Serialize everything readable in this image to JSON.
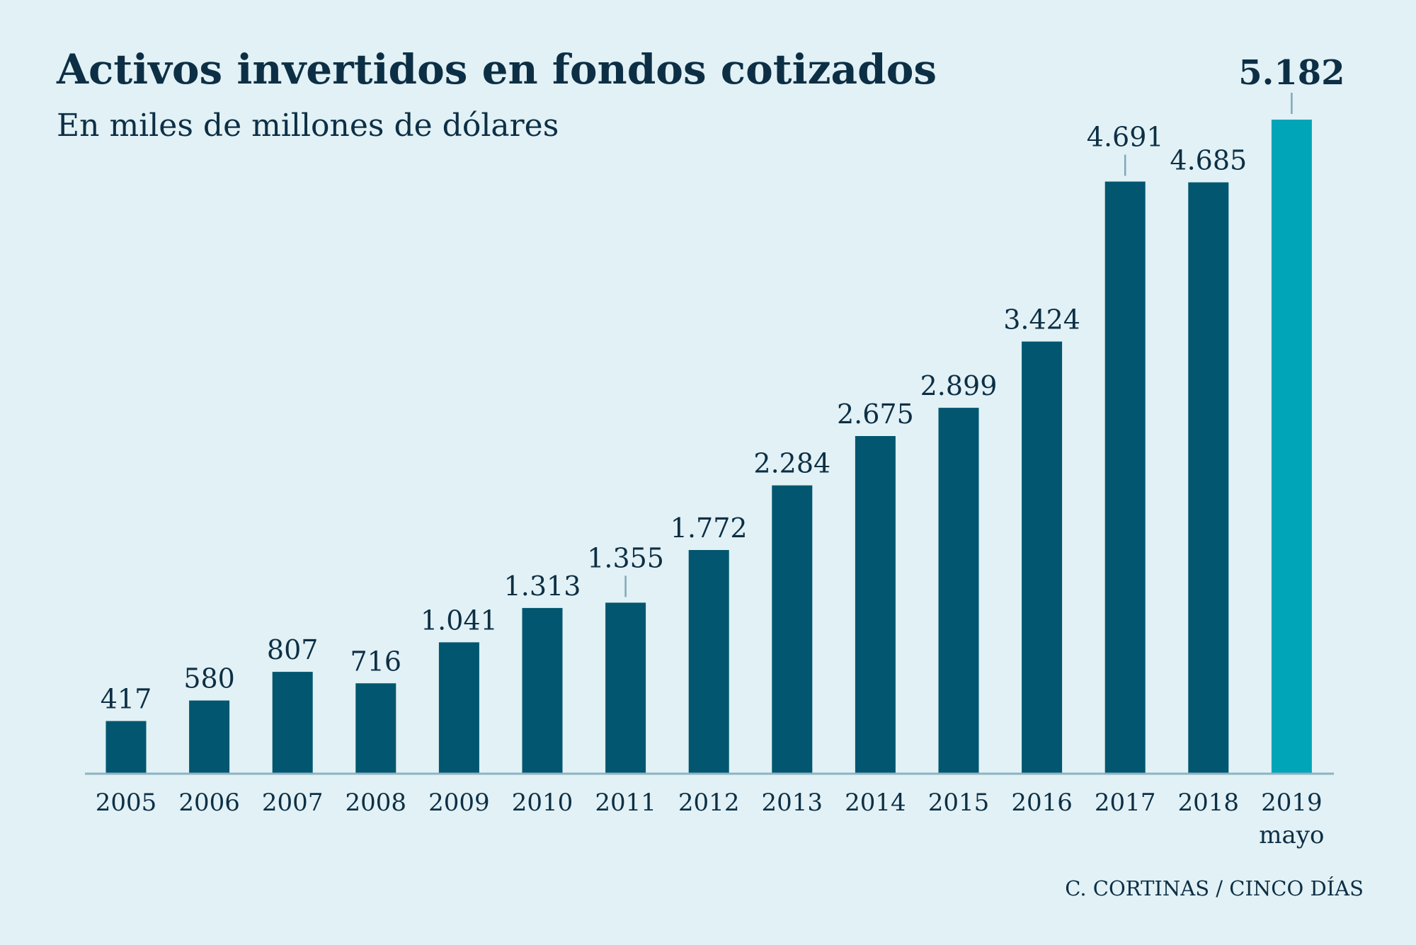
{
  "chart_data": {
    "type": "bar",
    "title": "Activos invertidos en fondos cotizados",
    "subtitle": "En miles de millones de dólares",
    "categories": [
      "2005",
      "2006",
      "2007",
      "2008",
      "2009",
      "2010",
      "2011",
      "2012",
      "2013",
      "2014",
      "2015",
      "2016",
      "2017",
      "2018",
      "2019"
    ],
    "category_sublabels": [
      "",
      "",
      "",
      "",
      "",
      "",
      "",
      "",
      "",
      "",
      "",
      "",
      "",
      "",
      "mayo"
    ],
    "values": [
      417,
      580,
      807,
      716,
      1041,
      1313,
      1355,
      1772,
      2284,
      2675,
      2899,
      3424,
      4691,
      4685,
      5182
    ],
    "value_labels": [
      "417",
      "580",
      "807",
      "716",
      "1.041",
      "1.313",
      "1.355",
      "1.772",
      "2.284",
      "2.675",
      "2.899",
      "3.424",
      "4.691",
      "4.685",
      "5.182"
    ],
    "highlight_index": 14,
    "leader_line_indices": [
      6,
      12,
      14
    ],
    "ylim": [
      0,
      5182
    ],
    "grid": false,
    "legend": "none",
    "xlabel": "",
    "ylabel": "",
    "source": "C. CORTINAS / CINCO DÍAS",
    "colors": {
      "background": "#e1f1f5",
      "bar": "#02566f",
      "highlight_bar": "#00a5b8",
      "text": "#0d2f45",
      "axis": "#8db3c2",
      "leader": "#7fa9b8"
    }
  }
}
